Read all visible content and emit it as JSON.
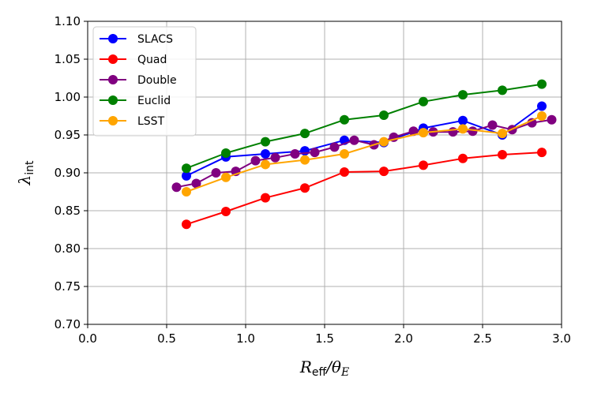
{
  "chart_data": {
    "type": "line",
    "title": "",
    "xlabel": "R_eff/θ_E",
    "xlabel_main": "R",
    "xlabel_sub": "eff",
    "xlabel_rest": "/θ",
    "xlabel_sub2": "E",
    "ylabel": "λ_int",
    "ylabel_main": "λ",
    "ylabel_sub": "int",
    "xlim": [
      0.0,
      3.0
    ],
    "ylim": [
      0.7,
      1.1
    ],
    "xticks": [
      0.0,
      0.5,
      1.0,
      1.5,
      2.0,
      2.5,
      3.0
    ],
    "xtick_labels": [
      "0.0",
      "0.5",
      "1.0",
      "1.5",
      "2.0",
      "2.5",
      "3.0"
    ],
    "yticks": [
      0.7,
      0.75,
      0.8,
      0.85,
      0.9,
      0.95,
      1.0,
      1.05,
      1.1
    ],
    "ytick_labels": [
      "0.70",
      "0.75",
      "0.80",
      "0.85",
      "0.90",
      "0.95",
      "1.00",
      "1.05",
      "1.10"
    ],
    "grid": true,
    "legend_position": "top-left",
    "series": [
      {
        "name": "SLACS",
        "color": "#0000ff",
        "x": [
          0.625,
          0.875,
          1.125,
          1.375,
          1.625,
          1.875,
          2.125,
          2.375,
          2.625,
          2.875
        ],
        "y": [
          0.896,
          0.921,
          0.925,
          0.929,
          0.943,
          0.94,
          0.959,
          0.969,
          0.95,
          0.988
        ]
      },
      {
        "name": "Quad",
        "color": "#ff0000",
        "x": [
          0.625,
          0.875,
          1.125,
          1.375,
          1.625,
          1.875,
          2.125,
          2.375,
          2.625,
          2.875
        ],
        "y": [
          0.832,
          0.849,
          0.867,
          0.88,
          0.901,
          0.902,
          0.91,
          0.919,
          0.924,
          0.927
        ]
      },
      {
        "name": "Double",
        "color": "#800080",
        "x": [
          0.5625,
          0.6875,
          0.8125,
          0.9375,
          1.0625,
          1.1875,
          1.3125,
          1.4375,
          1.5625,
          1.6875,
          1.8125,
          1.9375,
          2.0625,
          2.1875,
          2.3125,
          2.4375,
          2.5625,
          2.6875,
          2.8125,
          2.9375
        ],
        "y": [
          0.881,
          0.886,
          0.9,
          0.902,
          0.916,
          0.92,
          0.925,
          0.927,
          0.934,
          0.943,
          0.937,
          0.947,
          0.955,
          0.954,
          0.954,
          0.955,
          0.963,
          0.957,
          0.966,
          0.97
        ]
      },
      {
        "name": "Euclid",
        "color": "#008000",
        "x": [
          0.625,
          0.875,
          1.125,
          1.375,
          1.625,
          1.875,
          2.125,
          2.375,
          2.625,
          2.875
        ],
        "y": [
          0.906,
          0.926,
          0.941,
          0.952,
          0.97,
          0.976,
          0.994,
          1.003,
          1.009,
          1.017
        ]
      },
      {
        "name": "LSST",
        "color": "#ffa500",
        "x": [
          0.625,
          0.875,
          1.125,
          1.375,
          1.625,
          1.875,
          2.125,
          2.375,
          2.625,
          2.875
        ],
        "y": [
          0.875,
          0.894,
          0.911,
          0.917,
          0.925,
          0.941,
          0.953,
          0.958,
          0.952,
          0.975
        ]
      }
    ]
  }
}
